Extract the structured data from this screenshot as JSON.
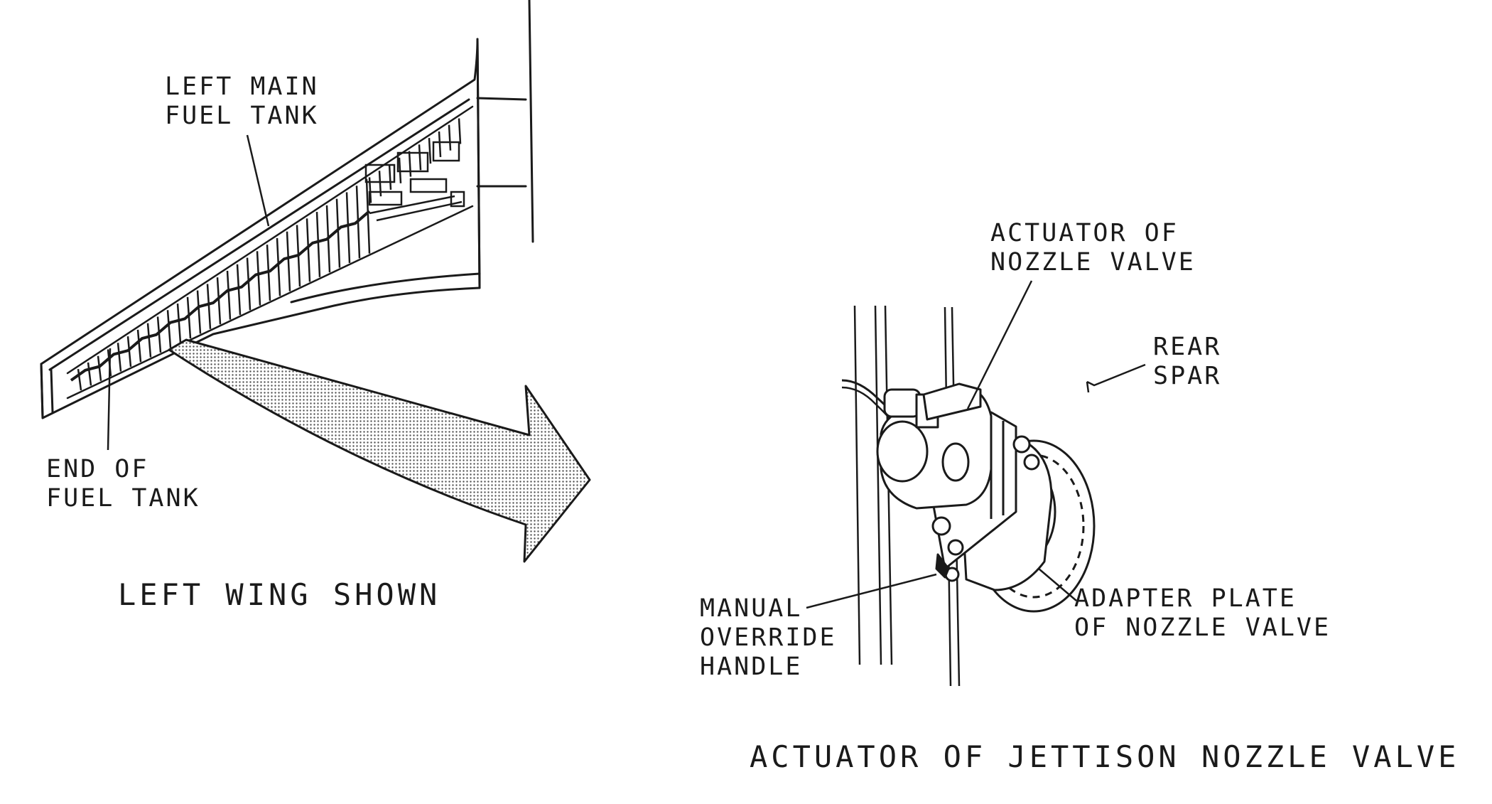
{
  "wing_view": {
    "label_main_tank_l1": "LEFT MAIN",
    "label_main_tank_l2": "FUEL TANK",
    "label_end_tank_l1": "END OF",
    "label_end_tank_l2": "FUEL TANK",
    "caption": "LEFT WING SHOWN"
  },
  "detail_view": {
    "label_actuator_l1": "ACTUATOR OF",
    "label_actuator_l2": "NOZZLE VALVE",
    "label_rear_spar_l1": "REAR",
    "label_rear_spar_l2": "SPAR",
    "label_adapter_l1": "ADAPTER PLATE",
    "label_adapter_l2": "OF NOZZLE VALVE",
    "label_handle_l1": "MANUAL",
    "label_handle_l2": "OVERRIDE",
    "label_handle_l3": "HANDLE",
    "caption": "ACTUATOR OF JETTISON NOZZLE VALVE"
  },
  "colors": {
    "ink": "#1a1a1a",
    "arrow_fill": "#c8c8c8",
    "background": "#ffffff"
  }
}
